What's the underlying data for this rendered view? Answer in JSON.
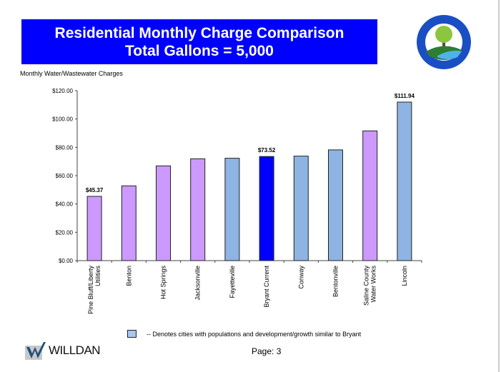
{
  "header": {
    "title_line1": "Residential Monthly Charge Comparison",
    "title_line2": "Total Gallons = 5,000",
    "seal_text_top": "CITY OF BRYANT",
    "seal_text_bottom": "ARKANSAS"
  },
  "colors": {
    "title_bg": "#0000ff",
    "regular": "#cc99ff",
    "similar": "#8db4e2",
    "bryant": "#0000ff"
  },
  "chart_data": {
    "type": "bar",
    "title": "Residential Monthly Charge Comparison Total Gallons = 5,000",
    "ylabel": "Monthly Water/Wastewater Charges",
    "ylim": [
      0,
      120
    ],
    "yticks": [
      "$0.00",
      "$20.00",
      "$40.00",
      "$60.00",
      "$80.00",
      "$100.00",
      "$120.00"
    ],
    "grid": false,
    "categories": [
      "Pine Bluff/Liberty Utilities",
      "Benton",
      "Hot Springs",
      "Jacksonville",
      "Fayetteville",
      "Bryant Current",
      "Conway",
      "Bentonville",
      "Saline County Water Works",
      "Lincoln"
    ],
    "category_lines": [
      [
        "Pine Bluff/Liberty",
        "Utilities"
      ],
      [
        "Benton"
      ],
      [
        "Hot Springs"
      ],
      [
        "Jacksonville"
      ],
      [
        "Fayetteville"
      ],
      [
        "Bryant Current"
      ],
      [
        "Conway"
      ],
      [
        "Bentonville"
      ],
      [
        "Saline County",
        "Water Works"
      ],
      [
        "Lincoln"
      ]
    ],
    "values": [
      45.37,
      52.8,
      66.9,
      71.9,
      72.3,
      73.52,
      73.8,
      78.2,
      91.6,
      111.94
    ],
    "groups": [
      "regular",
      "regular",
      "regular",
      "regular",
      "similar",
      "bryant",
      "similar",
      "similar",
      "regular",
      "similar"
    ],
    "data_labels": {
      "0": "$45.37",
      "5": "$73.52",
      "9": "$111.94"
    }
  },
  "legend": {
    "text": "-- Denotes cities with populations and development/growth similar to Bryant"
  },
  "footer": {
    "logo_text": "WILLDAN",
    "page": "Page: 3"
  }
}
